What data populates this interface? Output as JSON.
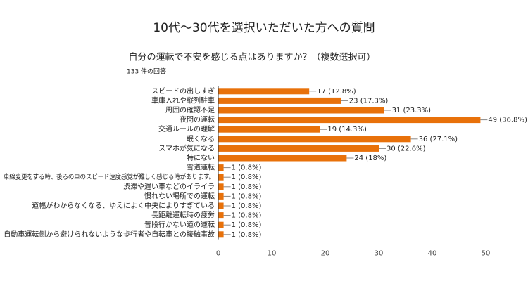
{
  "chart_data": {
    "type": "bar",
    "orientation": "horizontal",
    "title": "10代～30代を選択いただいた方への質問",
    "subtitle": "自分の運転で不安を感じる点はありますか？（複数選択可）",
    "response_count": "133 件の回答",
    "categories": [
      "スピードの出しすぎ",
      "車庫入れや縦列駐車",
      "周囲の確認不足",
      "夜間の運転",
      "交通ルールの理解",
      "眠くなる",
      "スマホが気になる",
      "特にない",
      "雪道運転",
      "車線変更をする時、後ろの車のスピード速度感覚が難しく感じる時があります。",
      "渋滞や遅い車などのイライラ",
      "慣れない場所での運転",
      "道幅がわからなくなる、ゆえによく中央によりすぎている",
      "長距離運転時の疲労",
      "普段行かない道の運転",
      "自動車運転側から避けられないような歩行者や自転車との接触事故"
    ],
    "values": [
      17,
      23,
      31,
      49,
      19,
      36,
      30,
      24,
      1,
      1,
      1,
      1,
      1,
      1,
      1,
      1
    ],
    "value_labels": [
      "17 (12.8%)",
      "23 (17.3%)",
      "31 (23.3%)",
      "49 (36.8%)",
      "19 (14.3%)",
      "36 (27.1%)",
      "30 (22.6%)",
      "24 (18%)",
      "1 (0.8%)",
      "1 (0.8%)",
      "1 (0.8%)",
      "1 (0.8%)",
      "1 (0.8%)",
      "1 (0.8%)",
      "1 (0.8%)",
      "1 (0.8%)"
    ],
    "color": "#e8710a",
    "xlim": [
      0,
      50
    ],
    "xticks": [
      0,
      10,
      20,
      30,
      40,
      50
    ],
    "grid": false
  }
}
